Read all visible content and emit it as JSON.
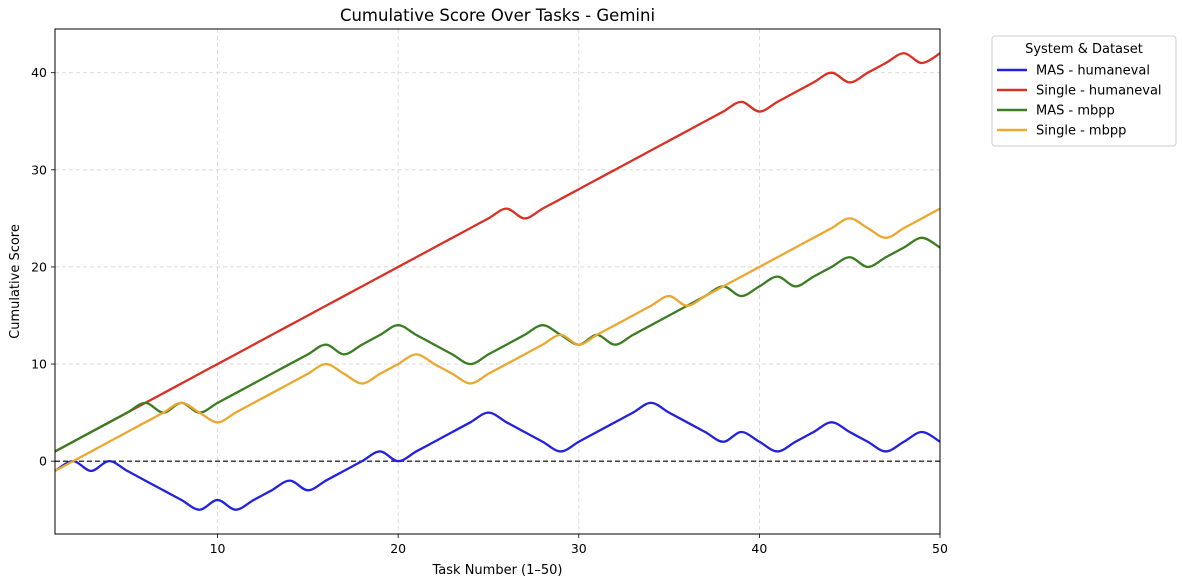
{
  "chart_data": {
    "type": "line",
    "title": "Cumulative Score Over Tasks - Gemini",
    "xlabel": "Task Number (1–50)",
    "ylabel": "Cumulative Score",
    "xlim": [
      1,
      50
    ],
    "ylim": [
      -7.5,
      44.5
    ],
    "xticks": [
      10,
      20,
      30,
      40,
      50
    ],
    "yticks": [
      0,
      10,
      20,
      30,
      40
    ],
    "grid": true,
    "reference_line_y": 0,
    "legend": {
      "title": "System & Dataset",
      "placement": "outside-top-right"
    },
    "x": [
      1,
      2,
      3,
      4,
      5,
      6,
      7,
      8,
      9,
      10,
      11,
      12,
      13,
      14,
      15,
      16,
      17,
      18,
      19,
      20,
      21,
      22,
      23,
      24,
      25,
      26,
      27,
      28,
      29,
      30,
      31,
      32,
      33,
      34,
      35,
      36,
      37,
      38,
      39,
      40,
      41,
      42,
      43,
      44,
      45,
      46,
      47,
      48,
      49,
      50
    ],
    "series": [
      {
        "name": "MAS - humaneval",
        "color": "#2222dd",
        "values": [
          -1,
          0,
          -1,
          0,
          -1,
          -2,
          -3,
          -4,
          -5,
          -4,
          -5,
          -4,
          -3,
          -2,
          -3,
          -2,
          -1,
          0,
          1,
          0,
          1,
          2,
          3,
          4,
          5,
          4,
          3,
          2,
          1,
          2,
          3,
          4,
          5,
          6,
          5,
          4,
          3,
          2,
          3,
          2,
          1,
          2,
          3,
          4,
          3,
          2,
          1,
          2,
          3,
          2
        ]
      },
      {
        "name": "Single - humaneval",
        "color": "#d93025",
        "values": [
          1,
          2,
          3,
          4,
          5,
          6,
          7,
          8,
          9,
          10,
          11,
          12,
          13,
          14,
          15,
          16,
          17,
          18,
          19,
          20,
          21,
          22,
          23,
          24,
          25,
          26,
          25,
          26,
          27,
          28,
          29,
          30,
          31,
          32,
          33,
          34,
          35,
          36,
          37,
          36,
          37,
          38,
          39,
          40,
          39,
          40,
          41,
          42,
          41,
          42
        ]
      },
      {
        "name": "MAS - mbpp",
        "color": "#3a7d22",
        "values": [
          1,
          2,
          3,
          4,
          5,
          6,
          5,
          6,
          5,
          6,
          7,
          8,
          9,
          10,
          11,
          12,
          11,
          12,
          13,
          14,
          13,
          12,
          11,
          10,
          11,
          12,
          13,
          14,
          13,
          12,
          13,
          12,
          13,
          14,
          15,
          16,
          17,
          18,
          17,
          18,
          19,
          18,
          19,
          20,
          21,
          20,
          21,
          22,
          23,
          22
        ]
      },
      {
        "name": "Single - mbpp",
        "color": "#eaa830",
        "values": [
          -1,
          0,
          1,
          2,
          3,
          4,
          5,
          6,
          5,
          4,
          5,
          6,
          7,
          8,
          9,
          10,
          9,
          8,
          9,
          10,
          11,
          10,
          9,
          8,
          9,
          10,
          11,
          12,
          13,
          12,
          13,
          14,
          15,
          16,
          17,
          16,
          17,
          18,
          19,
          20,
          21,
          22,
          23,
          24,
          25,
          24,
          23,
          24,
          25,
          26
        ]
      }
    ]
  }
}
